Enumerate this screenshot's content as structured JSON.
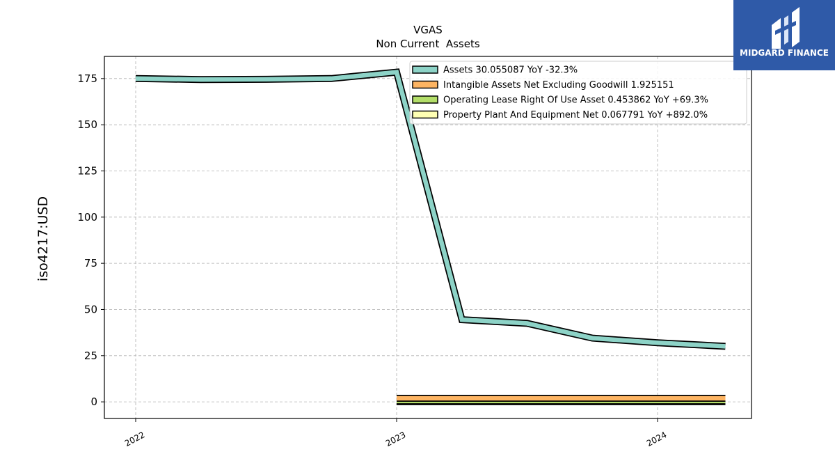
{
  "chart_data": {
    "type": "line",
    "title": "VGAS",
    "subtitle": "Non Current  Assets",
    "ylabel": "iso4217:USD",
    "xlabel": "",
    "ylim": [
      -9,
      187
    ],
    "xlim": [
      2021.88,
      2024.36
    ],
    "yticks": [
      0,
      25,
      50,
      75,
      100,
      125,
      150,
      175
    ],
    "xticks": [
      {
        "value": 2022.0,
        "label": "2022"
      },
      {
        "value": 2023.0,
        "label": "2023"
      },
      {
        "value": 2024.0,
        "label": "2024"
      }
    ],
    "grid": true,
    "legend_position": "top-right",
    "series": [
      {
        "name": "Assets  30.055087 YoY -32.3%",
        "color": "#8dd3c7",
        "x": [
          2022.0,
          2022.25,
          2022.5,
          2022.75,
          2023.0,
          2023.25,
          2023.5,
          2023.75,
          2024.0,
          2024.26
        ],
        "values": [
          175.0,
          174.5,
          174.6,
          175.0,
          178.5,
          44.5,
          42.5,
          34.5,
          32.0,
          30.06
        ]
      },
      {
        "name": "Intangible Assets Net Excluding Goodwill  1.925151",
        "color": "#fdb462",
        "x": [
          2023.0,
          2024.26
        ],
        "values": [
          1.93,
          1.93
        ]
      },
      {
        "name": "Operating Lease Right Of Use Asset  0.453862 YoY +69.3%",
        "color": "#b3de69",
        "x": [
          2023.0,
          2024.26
        ],
        "values": [
          0.45,
          0.45
        ]
      },
      {
        "name": "Property Plant And Equipment Net  0.067791 YoY +892.0%",
        "color": "#ffffb3",
        "x": [
          2023.0,
          2024.26
        ],
        "values": [
          0.07,
          0.07
        ]
      }
    ]
  },
  "logo": {
    "text": "MIDGARD FINANCE",
    "background": "#2f5aa8"
  }
}
